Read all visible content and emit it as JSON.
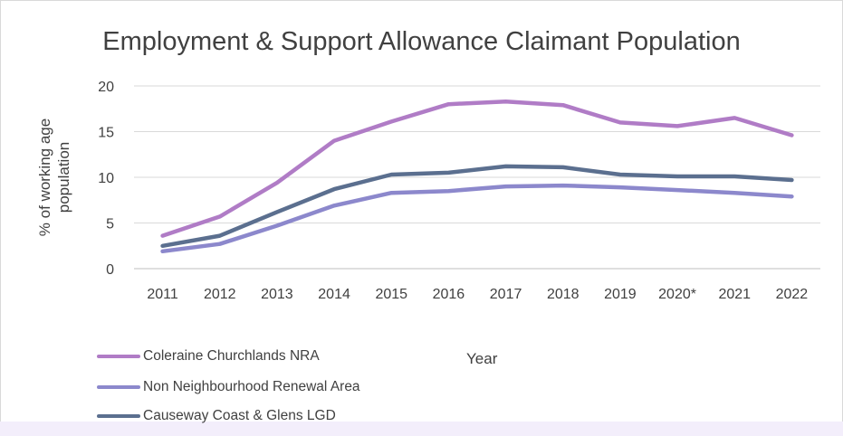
{
  "chart_data": {
    "type": "line",
    "title": "Employment & Support Allowance Claimant Population",
    "xlabel": "Year",
    "ylabel": "% of working age population",
    "categories": [
      "2011",
      "2012",
      "2013",
      "2014",
      "2015",
      "2016",
      "2017",
      "2018",
      "2019",
      "2020*",
      "2021",
      "2022"
    ],
    "yticks": [
      "0",
      "5",
      "10",
      "15",
      "20"
    ],
    "ylim": [
      0,
      20
    ],
    "grid": true,
    "legend_position": "bottom-left",
    "series": [
      {
        "name": "Coleraine Churchlands NRA",
        "color": "#b07cc6",
        "values": [
          3.6,
          5.7,
          9.4,
          14.0,
          16.1,
          18.0,
          18.3,
          17.9,
          16.0,
          15.6,
          16.5,
          14.6
        ]
      },
      {
        "name": "Non Neighbourhood Renewal Area",
        "color": "#8c88cc",
        "values": [
          1.9,
          2.7,
          4.7,
          6.9,
          8.3,
          8.5,
          9.0,
          9.1,
          8.9,
          8.6,
          8.3,
          7.9
        ]
      },
      {
        "name": "Causeway Coast & Glens LGD",
        "color": "#5b6f8f",
        "values": [
          2.5,
          3.6,
          6.2,
          8.7,
          10.3,
          10.5,
          11.2,
          11.1,
          10.3,
          10.1,
          10.1,
          9.7
        ]
      }
    ]
  }
}
